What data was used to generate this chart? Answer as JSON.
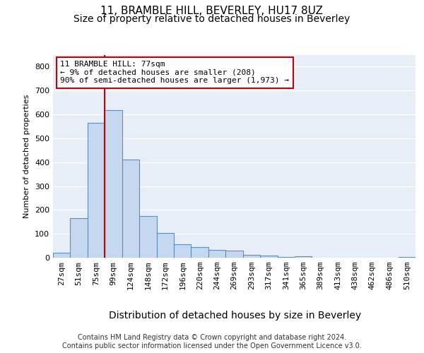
{
  "title_line1": "11, BRAMBLE HILL, BEVERLEY, HU17 8UZ",
  "title_line2": "Size of property relative to detached houses in Beverley",
  "xlabel": "Distribution of detached houses by size in Beverley",
  "ylabel": "Number of detached properties",
  "bin_labels": [
    "27sqm",
    "51sqm",
    "75sqm",
    "99sqm",
    "124sqm",
    "148sqm",
    "172sqm",
    "196sqm",
    "220sqm",
    "244sqm",
    "269sqm",
    "293sqm",
    "317sqm",
    "341sqm",
    "365sqm",
    "389sqm",
    "413sqm",
    "438sqm",
    "462sqm",
    "486sqm",
    "510sqm"
  ],
  "bar_values": [
    20,
    165,
    565,
    618,
    412,
    173,
    103,
    55,
    43,
    33,
    30,
    13,
    8,
    2,
    5,
    0,
    0,
    0,
    0,
    0,
    4
  ],
  "bar_color": "#c5d8f0",
  "bar_edge_color": "#5b8ec4",
  "vline_index": 2,
  "vline_color": "#cc0000",
  "annotation_text": "11 BRAMBLE HILL: 77sqm\n← 9% of detached houses are smaller (208)\n90% of semi-detached houses are larger (1,973) →",
  "annotation_box_facecolor": "#ffffff",
  "annotation_box_edgecolor": "#cc0000",
  "ylim": [
    0,
    850
  ],
  "yticks": [
    0,
    100,
    200,
    300,
    400,
    500,
    600,
    700,
    800
  ],
  "plot_bg_color": "#e8eef8",
  "grid_color": "#ffffff",
  "footer_text": "Contains HM Land Registry data © Crown copyright and database right 2024.\nContains public sector information licensed under the Open Government Licence v3.0.",
  "title_fontsize": 11,
  "subtitle_fontsize": 10,
  "xlabel_fontsize": 10,
  "ylabel_fontsize": 8,
  "tick_fontsize": 8,
  "annotation_fontsize": 8,
  "footer_fontsize": 7
}
